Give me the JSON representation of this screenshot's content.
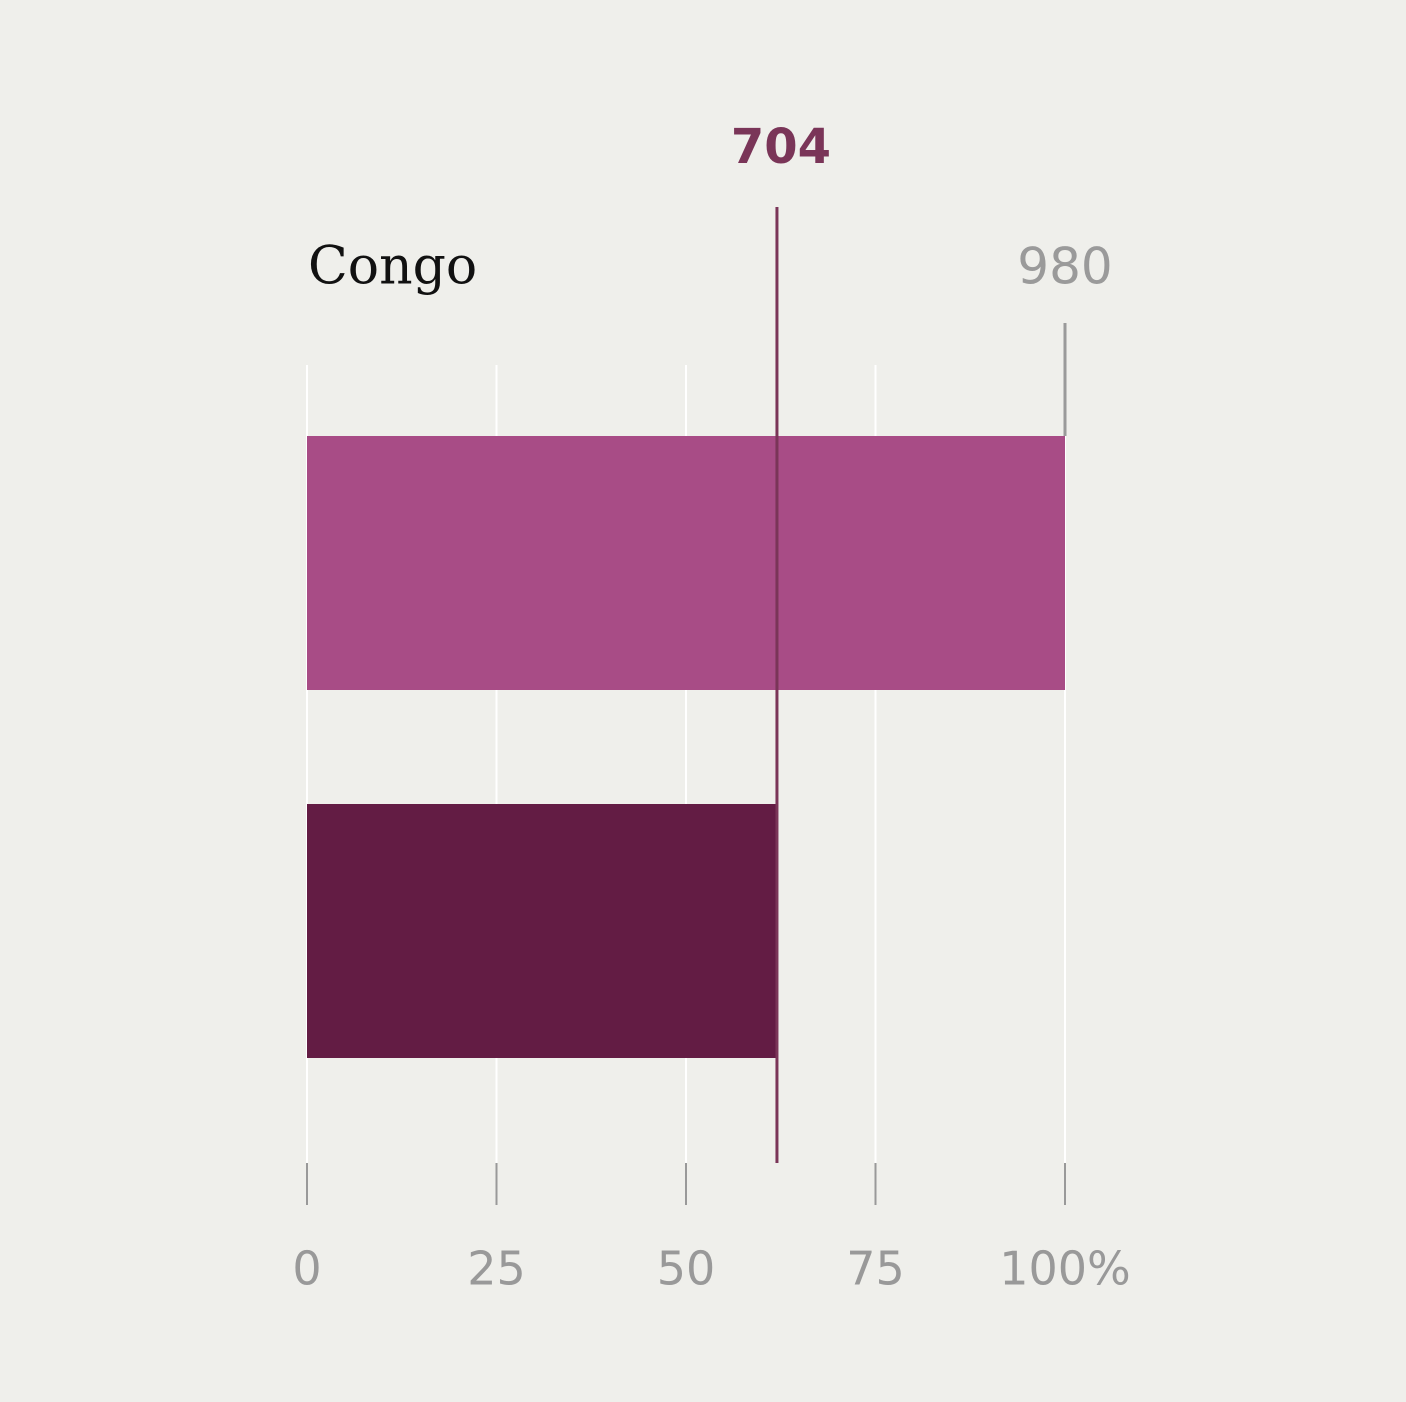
{
  "chart_data": {
    "type": "bar",
    "orientation": "horizontal",
    "title": "Congo",
    "categories": [
      null,
      null
    ],
    "values": [
      100,
      62
    ],
    "colors": [
      "#a84c86",
      "#631c44"
    ],
    "xlim": [
      0,
      100
    ],
    "xticks": [
      0,
      25,
      50,
      75,
      {
        "value": 100,
        "label": "100%"
      }
    ],
    "grid": true,
    "reference_lines": [
      {
        "label": "704",
        "value": 62,
        "color": "#7a3558",
        "bold": true
      },
      {
        "label": "980",
        "value": 100,
        "color": "#9a9a9a",
        "bold": false
      }
    ]
  }
}
